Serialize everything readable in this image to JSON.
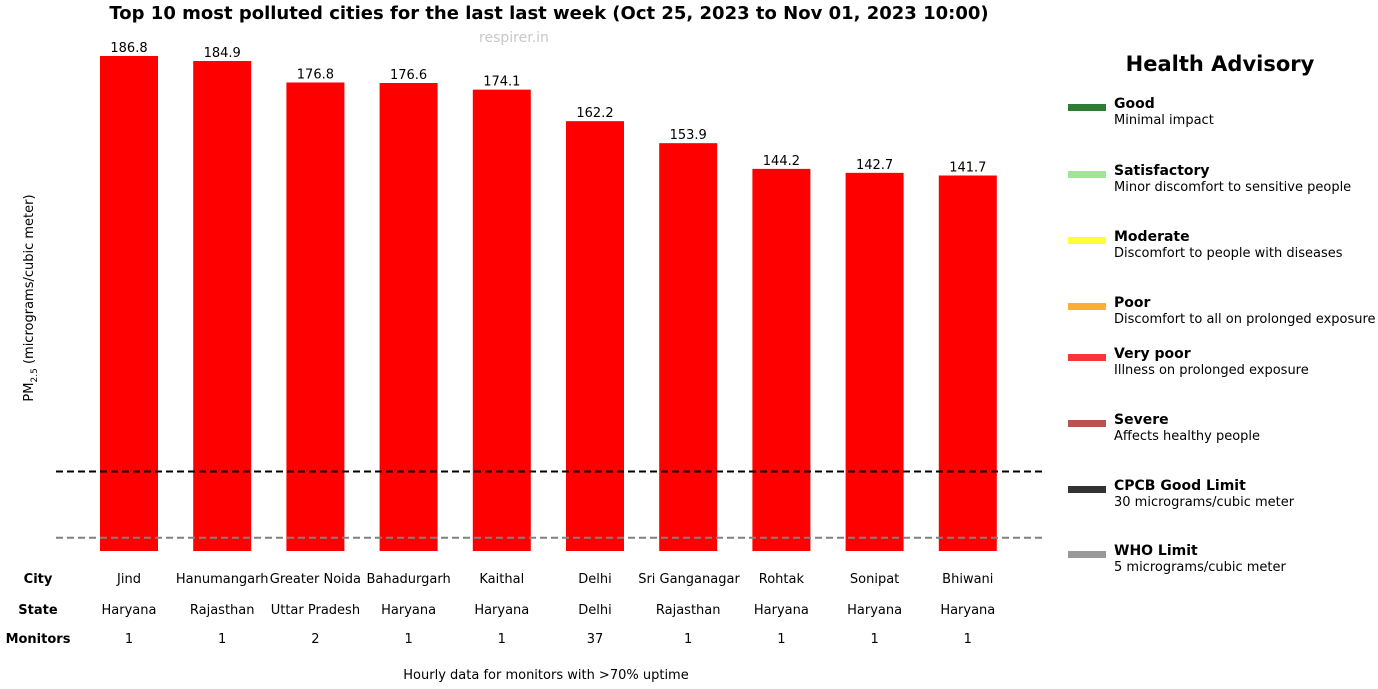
{
  "chart_data": {
    "type": "bar",
    "title": "Top 10 most polluted cities for the last last week (Oct 25, 2023 to Nov 01, 2023 10:00)",
    "watermark": "respirer.in",
    "ylabel_main": "PM",
    "ylabel_sub": "2.5",
    "ylabel_unit": " (micrograms/cubic meter)",
    "ylim": [
      0,
      200
    ],
    "categories": [
      "Jind",
      "Hanumangarh",
      "Greater Noida",
      "Bahadurgarh",
      "Kaithal",
      "Delhi",
      "Sri Ganganagar",
      "Rohtak",
      "Sonipat",
      "Bhiwani"
    ],
    "values": [
      186.8,
      184.9,
      176.8,
      176.6,
      174.1,
      162.2,
      153.9,
      144.2,
      142.7,
      141.7
    ],
    "value_labels": [
      "186.8",
      "184.9",
      "176.8",
      "176.6",
      "174.1",
      "162.2",
      "153.9",
      "144.2",
      "142.7",
      "141.7"
    ],
    "bar_color": "#ff0000",
    "reference_lines": [
      {
        "value": 30,
        "color": "#000000",
        "style": "dashed"
      },
      {
        "value": 5,
        "color": "#808080",
        "style": "dashed"
      }
    ],
    "table": {
      "row_labels": [
        "City",
        "State",
        "Monitors"
      ],
      "states": [
        "Haryana",
        "Rajasthan",
        "Uttar Pradesh",
        "Haryana",
        "Haryana",
        "Delhi",
        "Rajasthan",
        "Haryana",
        "Haryana",
        "Haryana"
      ],
      "monitors": [
        "1",
        "1",
        "2",
        "1",
        "1",
        "37",
        "1",
        "1",
        "1",
        "1"
      ]
    },
    "footer_note": "Hourly data for monitors with >70% uptime",
    "legend_placement": "right",
    "legend": {
      "title": "Health Advisory",
      "items": [
        {
          "label": "Good",
          "desc": "Minimal impact",
          "color": "#2e7d32"
        },
        {
          "label": "Satisfactory",
          "desc": "Minor discomfort to sensitive people",
          "color": "#9be89b"
        },
        {
          "label": "Moderate",
          "desc": "Discomfort to people with diseases",
          "color": "#ffff33"
        },
        {
          "label": "Poor",
          "desc": "Discomfort to all on prolonged exposure",
          "color": "#ffad33"
        },
        {
          "label": "Very poor",
          "desc": "Illness on prolonged exposure",
          "color": "#ff3333"
        },
        {
          "label": "Severe",
          "desc": "Affects healthy people",
          "color": "#b85450"
        },
        {
          "label": "CPCB Good Limit",
          "desc": "30 micrograms/cubic meter",
          "color": "#333333"
        },
        {
          "label": "WHO Limit",
          "desc": "5 micrograms/cubic meter",
          "color": "#999999"
        }
      ]
    }
  }
}
